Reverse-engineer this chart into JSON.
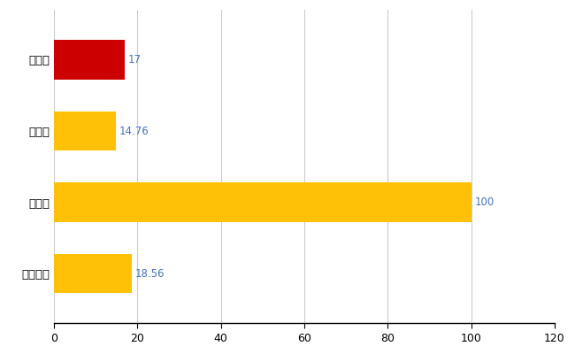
{
  "categories": [
    "全国平均",
    "県最大",
    "県平均",
    "能代市"
  ],
  "values": [
    18.56,
    100,
    14.76,
    17
  ],
  "bar_colors": [
    "#FFC107",
    "#FFC107",
    "#FFC107",
    "#CC0000"
  ],
  "value_labels": [
    "18.56",
    "100",
    "14.76",
    "17"
  ],
  "xlim": [
    0,
    120
  ],
  "xticks": [
    0,
    20,
    40,
    60,
    80,
    100,
    120
  ],
  "grid_color": "#CCCCCC",
  "background_color": "#FFFFFF",
  "label_color": "#4472C4",
  "bar_height": 0.55,
  "figsize": [
    6.5,
    4.0
  ],
  "dpi": 100
}
